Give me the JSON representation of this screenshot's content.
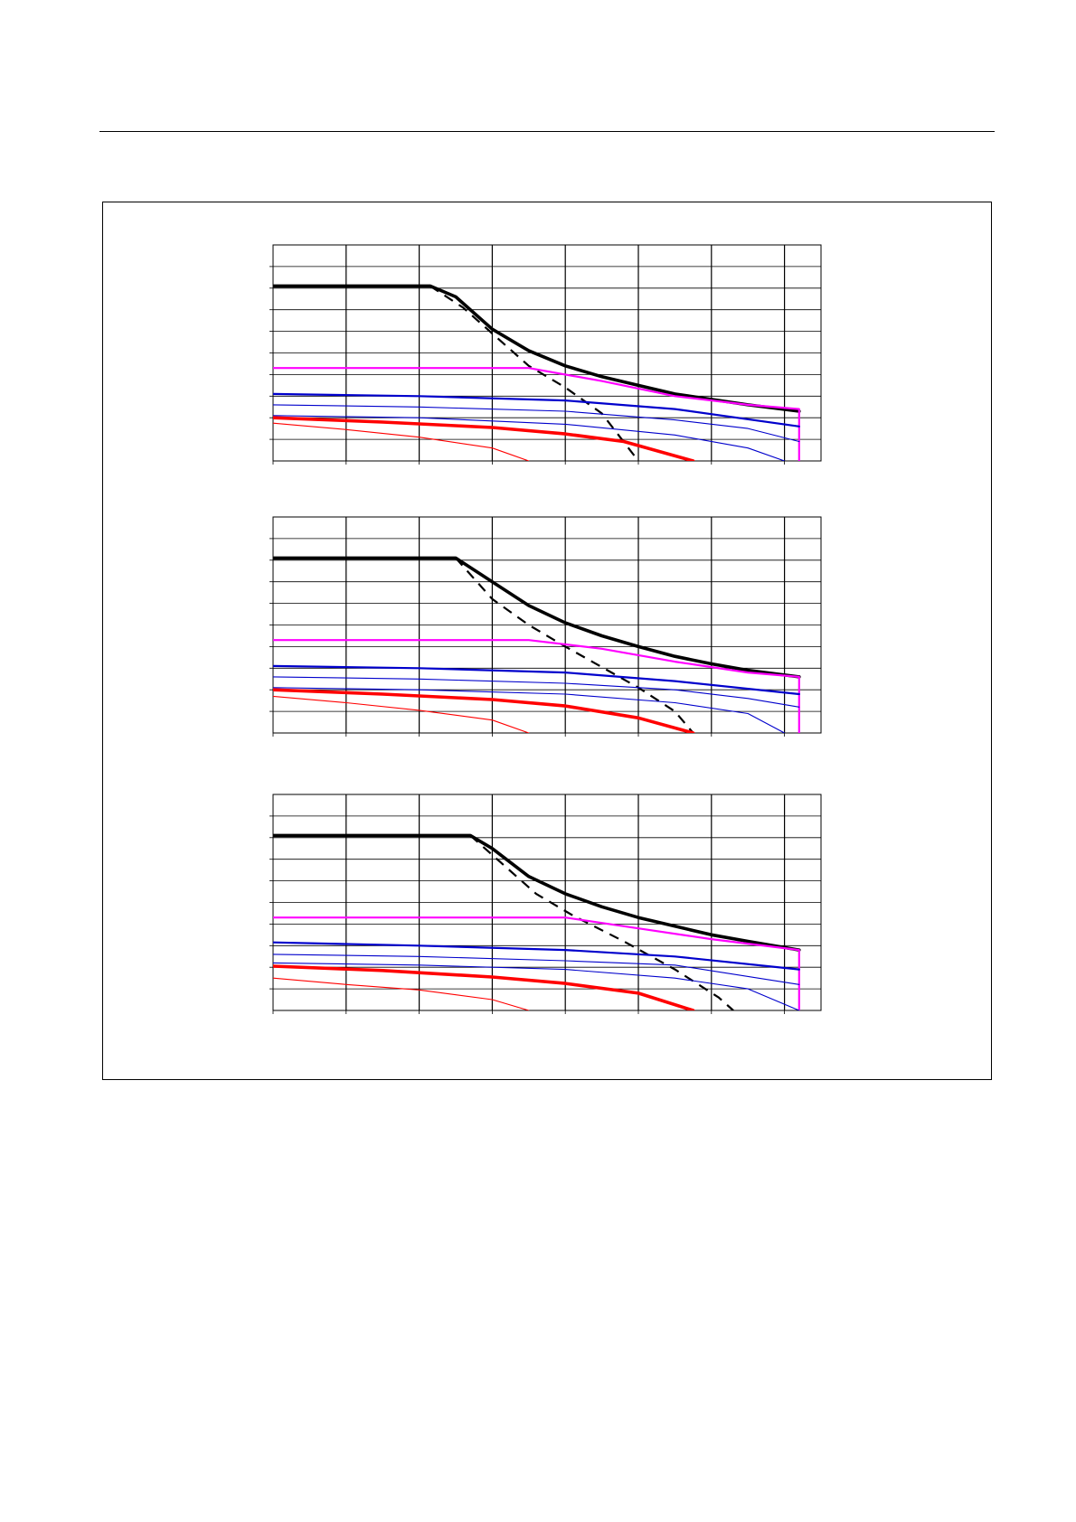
{
  "chart_data": [
    {
      "type": "line",
      "x_divisions": 8,
      "y_divisions": 10,
      "grid": true,
      "xlim": [
        0,
        7.5
      ],
      "ylim": [
        0,
        10
      ],
      "series": [
        {
          "color": "#000000",
          "weight": "thick",
          "dash": false,
          "points": [
            [
              0,
              8.1
            ],
            [
              2.15,
              8.1
            ],
            [
              2.5,
              7.6
            ],
            [
              3,
              6.1
            ],
            [
              3.5,
              5.1
            ],
            [
              4,
              4.4
            ],
            [
              4.5,
              3.9
            ],
            [
              5,
              3.5
            ],
            [
              5.5,
              3.1
            ],
            [
              6,
              2.85
            ],
            [
              6.5,
              2.6
            ],
            [
              7.2,
              2.3
            ]
          ]
        },
        {
          "color": "#000000",
          "weight": "medium",
          "dash": true,
          "points": [
            [
              2.15,
              8.1
            ],
            [
              2.6,
              7.1
            ],
            [
              3,
              5.9
            ],
            [
              3.5,
              4.4
            ],
            [
              4,
              3.4
            ],
            [
              4.5,
              2.2
            ],
            [
              5,
              0
            ]
          ]
        },
        {
          "color": "#ff00ff",
          "weight": "medium",
          "dash": false,
          "points": [
            [
              0,
              4.3
            ],
            [
              3.5,
              4.3
            ],
            [
              4.5,
              3.7
            ],
            [
              5.5,
              3.0
            ],
            [
              6.5,
              2.6
            ],
            [
              7.2,
              2.4
            ],
            [
              7.2,
              0
            ]
          ]
        },
        {
          "color": "#0000cc",
          "weight": "medium",
          "dash": false,
          "points": [
            [
              0,
              3.1
            ],
            [
              2,
              3.0
            ],
            [
              4,
              2.8
            ],
            [
              5.5,
              2.4
            ],
            [
              7.2,
              1.6
            ]
          ]
        },
        {
          "color": "#0000cc",
          "weight": "thin",
          "dash": false,
          "points": [
            [
              0,
              2.6
            ],
            [
              2,
              2.5
            ],
            [
              4,
              2.3
            ],
            [
              5.5,
              1.9
            ],
            [
              6.5,
              1.5
            ],
            [
              7.2,
              0.9
            ]
          ]
        },
        {
          "color": "#0000cc",
          "weight": "thin",
          "dash": false,
          "points": [
            [
              0,
              2.1
            ],
            [
              2,
              2.0
            ],
            [
              4,
              1.7
            ],
            [
              5.5,
              1.2
            ],
            [
              6.5,
              0.6
            ],
            [
              7,
              0
            ]
          ]
        },
        {
          "color": "#ff0000",
          "weight": "thick",
          "dash": false,
          "points": [
            [
              0,
              2.0
            ],
            [
              1.5,
              1.8
            ],
            [
              3,
              1.55
            ],
            [
              4,
              1.25
            ],
            [
              4.8,
              0.9
            ],
            [
              5.75,
              0
            ]
          ]
        },
        {
          "color": "#ff0000",
          "weight": "thin",
          "dash": false,
          "points": [
            [
              0,
              1.75
            ],
            [
              1,
              1.45
            ],
            [
              2,
              1.1
            ],
            [
              3,
              0.6
            ],
            [
              3.5,
              0
            ]
          ]
        }
      ]
    },
    {
      "type": "line",
      "x_divisions": 8,
      "y_divisions": 10,
      "grid": true,
      "xlim": [
        0,
        7.5
      ],
      "ylim": [
        0,
        10
      ],
      "series": [
        {
          "color": "#000000",
          "weight": "thick",
          "dash": false,
          "points": [
            [
              0,
              8.1
            ],
            [
              2.5,
              8.1
            ],
            [
              3,
              7.0
            ],
            [
              3.5,
              5.9
            ],
            [
              4,
              5.1
            ],
            [
              4.5,
              4.5
            ],
            [
              5,
              4.0
            ],
            [
              5.5,
              3.55
            ],
            [
              6,
              3.2
            ],
            [
              6.5,
              2.9
            ],
            [
              7.2,
              2.6
            ]
          ]
        },
        {
          "color": "#000000",
          "weight": "medium",
          "dash": true,
          "points": [
            [
              2.5,
              8.1
            ],
            [
              3,
              6.2
            ],
            [
              3.5,
              5.0
            ],
            [
              4,
              4.0
            ],
            [
              4.5,
              3.05
            ],
            [
              5,
              2.1
            ],
            [
              5.5,
              1.0
            ],
            [
              5.75,
              0
            ]
          ]
        },
        {
          "color": "#ff00ff",
          "weight": "medium",
          "dash": false,
          "points": [
            [
              0,
              4.3
            ],
            [
              3.5,
              4.3
            ],
            [
              4.5,
              3.9
            ],
            [
              5.5,
              3.3
            ],
            [
              6.5,
              2.8
            ],
            [
              7.2,
              2.6
            ],
            [
              7.2,
              0
            ]
          ]
        },
        {
          "color": "#0000cc",
          "weight": "medium",
          "dash": false,
          "points": [
            [
              0,
              3.1
            ],
            [
              2,
              3.0
            ],
            [
              4,
              2.8
            ],
            [
              5.5,
              2.4
            ],
            [
              7.2,
              1.8
            ]
          ]
        },
        {
          "color": "#0000cc",
          "weight": "thin",
          "dash": false,
          "points": [
            [
              0,
              2.6
            ],
            [
              2,
              2.5
            ],
            [
              4,
              2.3
            ],
            [
              5.5,
              2.0
            ],
            [
              6.5,
              1.6
            ],
            [
              7.2,
              1.2
            ]
          ]
        },
        {
          "color": "#0000cc",
          "weight": "thin",
          "dash": false,
          "points": [
            [
              0,
              2.1
            ],
            [
              2,
              2.0
            ],
            [
              4,
              1.8
            ],
            [
              5.5,
              1.4
            ],
            [
              6.5,
              0.9
            ],
            [
              7,
              0
            ]
          ]
        },
        {
          "color": "#ff0000",
          "weight": "thick",
          "dash": false,
          "points": [
            [
              0,
              2.0
            ],
            [
              1.5,
              1.8
            ],
            [
              3,
              1.55
            ],
            [
              4,
              1.25
            ],
            [
              5,
              0.7
            ],
            [
              5.75,
              0
            ]
          ]
        },
        {
          "color": "#ff0000",
          "weight": "thin",
          "dash": false,
          "points": [
            [
              0,
              1.7
            ],
            [
              1,
              1.4
            ],
            [
              2,
              1.05
            ],
            [
              3,
              0.6
            ],
            [
              3.5,
              0
            ]
          ]
        }
      ]
    },
    {
      "type": "line",
      "x_divisions": 8,
      "y_divisions": 10,
      "grid": true,
      "xlim": [
        0,
        7.5
      ],
      "ylim": [
        0,
        10
      ],
      "series": [
        {
          "color": "#000000",
          "weight": "thick",
          "dash": false,
          "points": [
            [
              0,
              8.1
            ],
            [
              2.7,
              8.1
            ],
            [
              3,
              7.5
            ],
            [
              3.5,
              6.2
            ],
            [
              4,
              5.4
            ],
            [
              4.5,
              4.8
            ],
            [
              5,
              4.3
            ],
            [
              5.5,
              3.9
            ],
            [
              6,
              3.5
            ],
            [
              6.5,
              3.2
            ],
            [
              7.2,
              2.8
            ]
          ]
        },
        {
          "color": "#000000",
          "weight": "medium",
          "dash": true,
          "points": [
            [
              2.7,
              8.1
            ],
            [
              3.1,
              6.9
            ],
            [
              3.6,
              5.4
            ],
            [
              4.1,
              4.4
            ],
            [
              4.8,
              3.2
            ],
            [
              5.5,
              1.9
            ],
            [
              6.1,
              0.6
            ],
            [
              6.3,
              0
            ]
          ]
        },
        {
          "color": "#ff00ff",
          "weight": "medium",
          "dash": false,
          "points": [
            [
              0,
              4.3
            ],
            [
              4,
              4.3
            ],
            [
              5,
              3.8
            ],
            [
              6,
              3.3
            ],
            [
              7.2,
              2.8
            ],
            [
              7.2,
              0
            ]
          ]
        },
        {
          "color": "#0000cc",
          "weight": "medium",
          "dash": false,
          "points": [
            [
              0,
              3.15
            ],
            [
              2,
              3.0
            ],
            [
              4,
              2.8
            ],
            [
              5.5,
              2.5
            ],
            [
              7.2,
              1.9
            ]
          ]
        },
        {
          "color": "#0000cc",
          "weight": "thin",
          "dash": false,
          "points": [
            [
              0,
              2.6
            ],
            [
              2,
              2.5
            ],
            [
              4,
              2.3
            ],
            [
              5.5,
              2.1
            ],
            [
              7.2,
              1.2
            ]
          ]
        },
        {
          "color": "#0000cc",
          "weight": "thin",
          "dash": false,
          "points": [
            [
              0,
              2.2
            ],
            [
              2,
              2.1
            ],
            [
              4,
              1.9
            ],
            [
              5.5,
              1.5
            ],
            [
              6.5,
              1.0
            ],
            [
              7.2,
              0
            ]
          ]
        },
        {
          "color": "#ff0000",
          "weight": "thick",
          "dash": false,
          "points": [
            [
              0,
              2.05
            ],
            [
              1.5,
              1.85
            ],
            [
              3,
              1.55
            ],
            [
              4,
              1.25
            ],
            [
              5,
              0.8
            ],
            [
              5.75,
              0
            ]
          ]
        },
        {
          "color": "#ff0000",
          "weight": "thin",
          "dash": false,
          "points": [
            [
              0,
              1.5
            ],
            [
              1,
              1.2
            ],
            [
              2,
              0.95
            ],
            [
              3,
              0.5
            ],
            [
              3.5,
              0
            ]
          ]
        }
      ]
    }
  ]
}
